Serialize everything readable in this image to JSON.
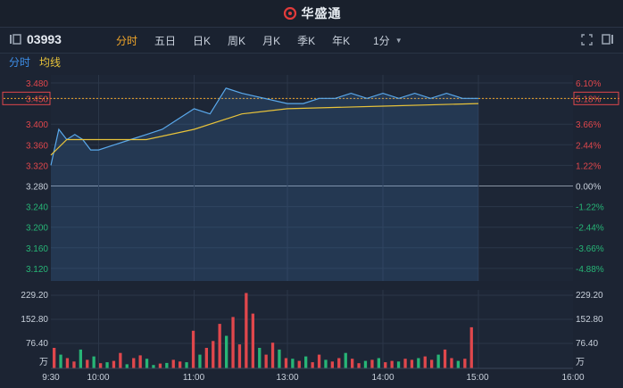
{
  "header": {
    "brand": "华盛通",
    "brand_color": "#e23b3b"
  },
  "toolbar": {
    "code": "03993",
    "tabs": [
      "分时",
      "五日",
      "日K",
      "周K",
      "月K",
      "季K",
      "年K"
    ],
    "active_tab": "分时",
    "period": "1分"
  },
  "legend": {
    "line_label": "分时",
    "avg_label": "均线"
  },
  "price_axis_left": [
    "3.480",
    "3.450",
    "3.400",
    "3.360",
    "3.320",
    "3.280",
    "3.240",
    "3.200",
    "3.160",
    "3.120"
  ],
  "pct_axis_right": [
    "6.10%",
    "5.18%",
    "3.66%",
    "2.44%",
    "1.22%",
    "0.00%",
    "-1.22%",
    "-2.44%",
    "-3.66%",
    "-4.88%"
  ],
  "volume_axis": {
    "left": [
      "229.20",
      "152.80",
      "76.40",
      "万"
    ],
    "right": [
      "229.20",
      "152.80",
      "76.40",
      "万"
    ]
  },
  "time_axis": [
    "9:30",
    "10:00",
    "11:00",
    "13:00",
    "14:00",
    "15:00",
    "16:00"
  ],
  "colors": {
    "up": "#e0474c",
    "down": "#27b576",
    "line": "#5aa9ec",
    "avg": "#e8c33a",
    "accent": "#f0a529"
  },
  "chart_data": {
    "type": "line",
    "prev_close": 3.28,
    "ylim": [
      3.08,
      3.48
    ],
    "series": [
      {
        "name": "分时",
        "x": [
          "9:30",
          "9:35",
          "9:40",
          "9:45",
          "9:50",
          "9:55",
          "10:00",
          "10:10",
          "10:20",
          "10:30",
          "10:40",
          "10:50",
          "11:00",
          "11:10",
          "11:20",
          "11:30",
          "13:00",
          "13:10",
          "13:20",
          "13:30",
          "13:40",
          "13:50",
          "14:00",
          "14:10",
          "14:20",
          "14:30",
          "14:40",
          "14:50",
          "15:00"
        ],
        "values": [
          3.32,
          3.39,
          3.37,
          3.38,
          3.37,
          3.35,
          3.35,
          3.36,
          3.37,
          3.38,
          3.39,
          3.41,
          3.43,
          3.42,
          3.47,
          3.46,
          3.44,
          3.44,
          3.45,
          3.45,
          3.46,
          3.45,
          3.46,
          3.45,
          3.46,
          3.45,
          3.46,
          3.45,
          3.45
        ]
      },
      {
        "name": "均线",
        "x": [
          "9:30",
          "9:40",
          "10:00",
          "10:30",
          "11:00",
          "11:30",
          "13:00",
          "14:00",
          "15:00"
        ],
        "values": [
          3.34,
          3.37,
          3.37,
          3.37,
          3.39,
          3.42,
          3.43,
          3.435,
          3.44
        ]
      }
    ],
    "volume": {
      "unit": "万",
      "ylim": [
        0,
        229.2
      ],
      "values": [
        60,
        40,
        30,
        20,
        55,
        25,
        35,
        15,
        18,
        22,
        45,
        12,
        30,
        38,
        28,
        10,
        14,
        16,
        25,
        20,
        18,
        110,
        40,
        60,
        80,
        130,
        95,
        150,
        70,
        220,
        160,
        60,
        40,
        75,
        55,
        30,
        28,
        22,
        35,
        18,
        40,
        25,
        20,
        30,
        45,
        28,
        15,
        22,
        25,
        30,
        18,
        22,
        20,
        28,
        25,
        30,
        35,
        25,
        40,
        55,
        30,
        22,
        28,
        120
      ],
      "directions": [
        "u",
        "d",
        "u",
        "u",
        "d",
        "u",
        "d",
        "u",
        "d",
        "u",
        "u",
        "d",
        "u",
        "u",
        "d",
        "d",
        "u",
        "d",
        "u",
        "u",
        "d",
        "u",
        "d",
        "u",
        "u",
        "u",
        "d",
        "u",
        "u",
        "u",
        "u",
        "d",
        "u",
        "u",
        "d",
        "u",
        "d",
        "u",
        "d",
        "u",
        "u",
        "d",
        "u",
        "u",
        "d",
        "u",
        "u",
        "d",
        "u",
        "d",
        "u",
        "u",
        "d",
        "u",
        "u",
        "d",
        "u",
        "u",
        "d",
        "u",
        "u",
        "d",
        "u",
        "u"
      ]
    }
  }
}
